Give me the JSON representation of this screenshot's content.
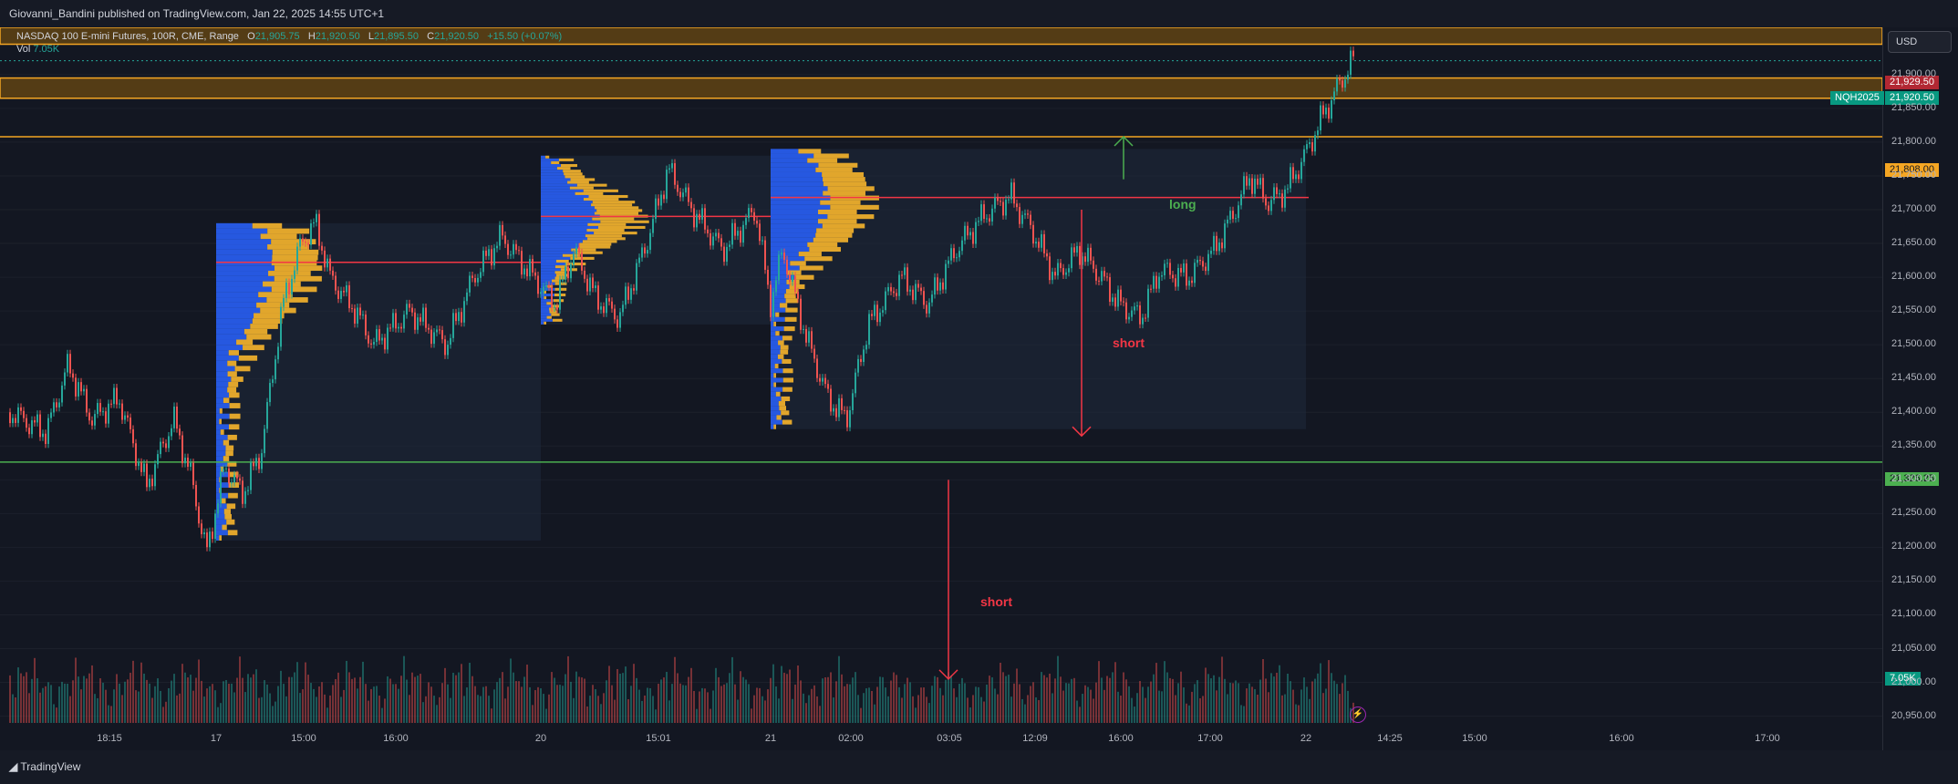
{
  "header": {
    "publish_line": "Giovanni_Bandini published on TradingView.com, Jan 22, 2025 14:55 UTC+1"
  },
  "legend": {
    "symbol_line": "NASDAQ 100 E-mini Futures, 100R, CME, Range",
    "o_label": "O",
    "o_value": "21,905.75",
    "h_label": "H",
    "h_value": "21,920.50",
    "l_label": "L",
    "l_value": "21,895.50",
    "c_label": "C",
    "c_value": "21,920.50",
    "change": "+15.50 (+0.07%)",
    "vol_label": "Vol",
    "vol_value": "7.05K"
  },
  "currency": "USD",
  "price_tags": {
    "top": "21,929.50",
    "symbol": "NQH2025",
    "last": "21,920.50",
    "level_orange": "21,808.00",
    "level_green": "21,326.25",
    "volume": "7.05K"
  },
  "annotations": {
    "long": "long",
    "short_mid": "short",
    "short_low": "short"
  },
  "footer": {
    "brand": "TradingView"
  },
  "colors": {
    "up": "#26a69a",
    "down": "#ef5350",
    "zone": "#f5a623",
    "poc": "#f23645",
    "support": "#4caf50",
    "profile_blue": "#2962ff",
    "profile_gold": "#f7b52c"
  },
  "chart_data": {
    "type": "candlestick",
    "title": "NASDAQ 100 E-mini Futures, 100R, CME, Range",
    "y_ticks": [
      "21,900.00",
      "21,850.00",
      "21,800.00",
      "21,750.00",
      "21,700.00",
      "21,650.00",
      "21,600.00",
      "21,550.00",
      "21,500.00",
      "21,450.00",
      "21,400.00",
      "21,350.00",
      "21,300.00",
      "21,250.00",
      "21,200.00",
      "21,150.00",
      "21,100.00",
      "21,050.00",
      "21,000.00",
      "20,950.00"
    ],
    "x_ticks": [
      "18:15",
      "17",
      "15:00",
      "16:00",
      "20",
      "15:01",
      "21",
      "02:00",
      "03:05",
      "12:09",
      "16:00",
      "17:00",
      "22",
      "14:25",
      "15:00",
      "16:00",
      "17:00"
    ],
    "ylim": [
      20940,
      21970
    ],
    "resistance_zones": [
      [
        21945,
        21970
      ],
      [
        21865,
        21895
      ]
    ],
    "levels": [
      {
        "value": 21808,
        "color": "orange"
      },
      {
        "value": 21326.25,
        "color": "green"
      }
    ],
    "session_profiles": [
      {
        "start": 17,
        "end": 20,
        "high": 21680,
        "low": 21210,
        "poc": 21622
      },
      {
        "start": 20,
        "end": 21,
        "high": 21780,
        "low": 21530,
        "poc": 21690
      },
      {
        "start": 21,
        "end": 22,
        "high": 21790,
        "low": 21375,
        "poc": 21718
      }
    ],
    "price_path": [
      {
        "x": 0.0,
        "y": 21400
      },
      {
        "x": 0.02,
        "y": 21370
      },
      {
        "x": 0.032,
        "y": 21470
      },
      {
        "x": 0.045,
        "y": 21390
      },
      {
        "x": 0.06,
        "y": 21420
      },
      {
        "x": 0.075,
        "y": 21290
      },
      {
        "x": 0.09,
        "y": 21390
      },
      {
        "x": 0.1,
        "y": 21300
      },
      {
        "x": 0.108,
        "y": 21190
      },
      {
        "x": 0.118,
        "y": 21320
      },
      {
        "x": 0.128,
        "y": 21280
      },
      {
        "x": 0.138,
        "y": 21340
      },
      {
        "x": 0.15,
        "y": 21560
      },
      {
        "x": 0.16,
        "y": 21650
      },
      {
        "x": 0.168,
        "y": 21680
      },
      {
        "x": 0.176,
        "y": 21600
      },
      {
        "x": 0.19,
        "y": 21550
      },
      {
        "x": 0.2,
        "y": 21500
      },
      {
        "x": 0.22,
        "y": 21550
      },
      {
        "x": 0.24,
        "y": 21500
      },
      {
        "x": 0.255,
        "y": 21600
      },
      {
        "x": 0.27,
        "y": 21660
      },
      {
        "x": 0.285,
        "y": 21610
      },
      {
        "x": 0.3,
        "y": 21560
      },
      {
        "x": 0.31,
        "y": 21640
      },
      {
        "x": 0.322,
        "y": 21570
      },
      {
        "x": 0.335,
        "y": 21540
      },
      {
        "x": 0.35,
        "y": 21650
      },
      {
        "x": 0.362,
        "y": 21760
      },
      {
        "x": 0.375,
        "y": 21700
      },
      {
        "x": 0.392,
        "y": 21640
      },
      {
        "x": 0.41,
        "y": 21700
      },
      {
        "x": 0.418,
        "y": 21560
      },
      {
        "x": 0.425,
        "y": 21640
      },
      {
        "x": 0.438,
        "y": 21510
      },
      {
        "x": 0.45,
        "y": 21420
      },
      {
        "x": 0.46,
        "y": 21390
      },
      {
        "x": 0.472,
        "y": 21530
      },
      {
        "x": 0.49,
        "y": 21600
      },
      {
        "x": 0.505,
        "y": 21560
      },
      {
        "x": 0.52,
        "y": 21640
      },
      {
        "x": 0.535,
        "y": 21690
      },
      {
        "x": 0.55,
        "y": 21720
      },
      {
        "x": 0.562,
        "y": 21670
      },
      {
        "x": 0.575,
        "y": 21600
      },
      {
        "x": 0.588,
        "y": 21640
      },
      {
        "x": 0.6,
        "y": 21600
      },
      {
        "x": 0.61,
        "y": 21560
      },
      {
        "x": 0.622,
        "y": 21540
      },
      {
        "x": 0.632,
        "y": 21610
      },
      {
        "x": 0.648,
        "y": 21600
      },
      {
        "x": 0.662,
        "y": 21640
      },
      {
        "x": 0.672,
        "y": 21690
      },
      {
        "x": 0.682,
        "y": 21750
      },
      {
        "x": 0.692,
        "y": 21710
      },
      {
        "x": 0.702,
        "y": 21730
      },
      {
        "x": 0.712,
        "y": 21780
      },
      {
        "x": 0.722,
        "y": 21840
      },
      {
        "x": 0.732,
        "y": 21890
      },
      {
        "x": 0.74,
        "y": 21930
      }
    ]
  }
}
